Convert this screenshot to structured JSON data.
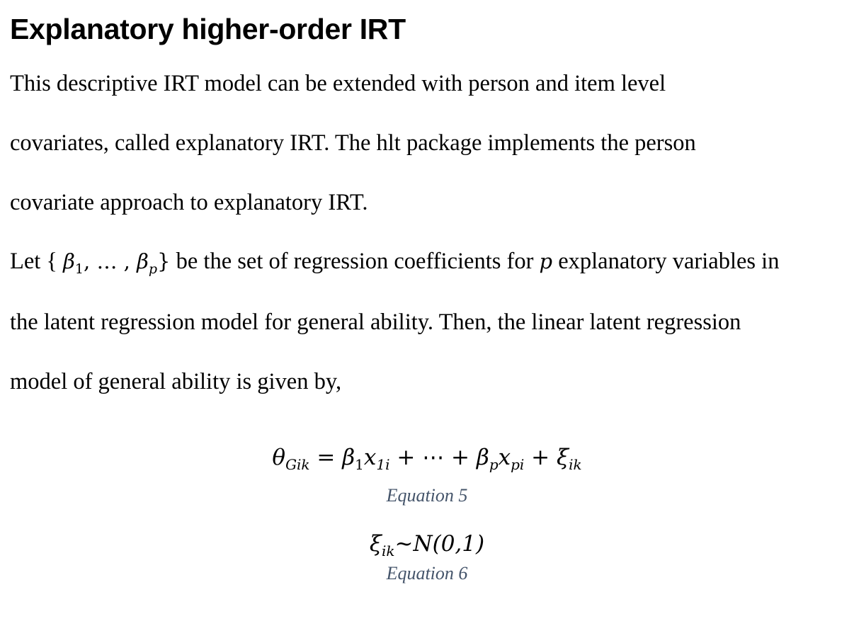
{
  "heading": "Explanatory higher-order IRT",
  "paragraph1": {
    "lines": [
      "This descriptive IRT model can be extended with person and item level",
      "covariates, called explanatory IRT. The hlt package implements the person",
      "covariate approach to explanatory IRT."
    ]
  },
  "paragraph2": {
    "line1_prefix": "Let { ",
    "coef_set": "β",
    "coef_first_sub": "1",
    "ellipsis": ", … , ",
    "coef_last_sub": "p",
    "close": "}",
    "line1_mid": " be the set of regression coefficients for ",
    "p_var": "p",
    "line1_suffix": " explanatory variables in",
    "lines": [
      "the latent regression model for general ability. Then, the linear latent regression",
      "model of general ability is given by,"
    ]
  },
  "equation5": {
    "lhs": "θ",
    "lhs_sub": "Gik",
    "eq": " = ",
    "t1": "β",
    "t1_sub": "1",
    "t1x": "x",
    "t1x_sub": "1i",
    "mid": " + ⋯ + ",
    "t2": "β",
    "t2_sub": "p",
    "t2x": "x",
    "t2x_sub": "pi",
    "plus": " + ",
    "t3": "ξ",
    "t3_sub": "ik",
    "caption": "Equation 5"
  },
  "equation6": {
    "xi": "ξ",
    "xi_sub": "ik",
    "rhs": "~N(0,1)",
    "caption": "Equation 6"
  },
  "colors": {
    "caption": "#44546a"
  }
}
